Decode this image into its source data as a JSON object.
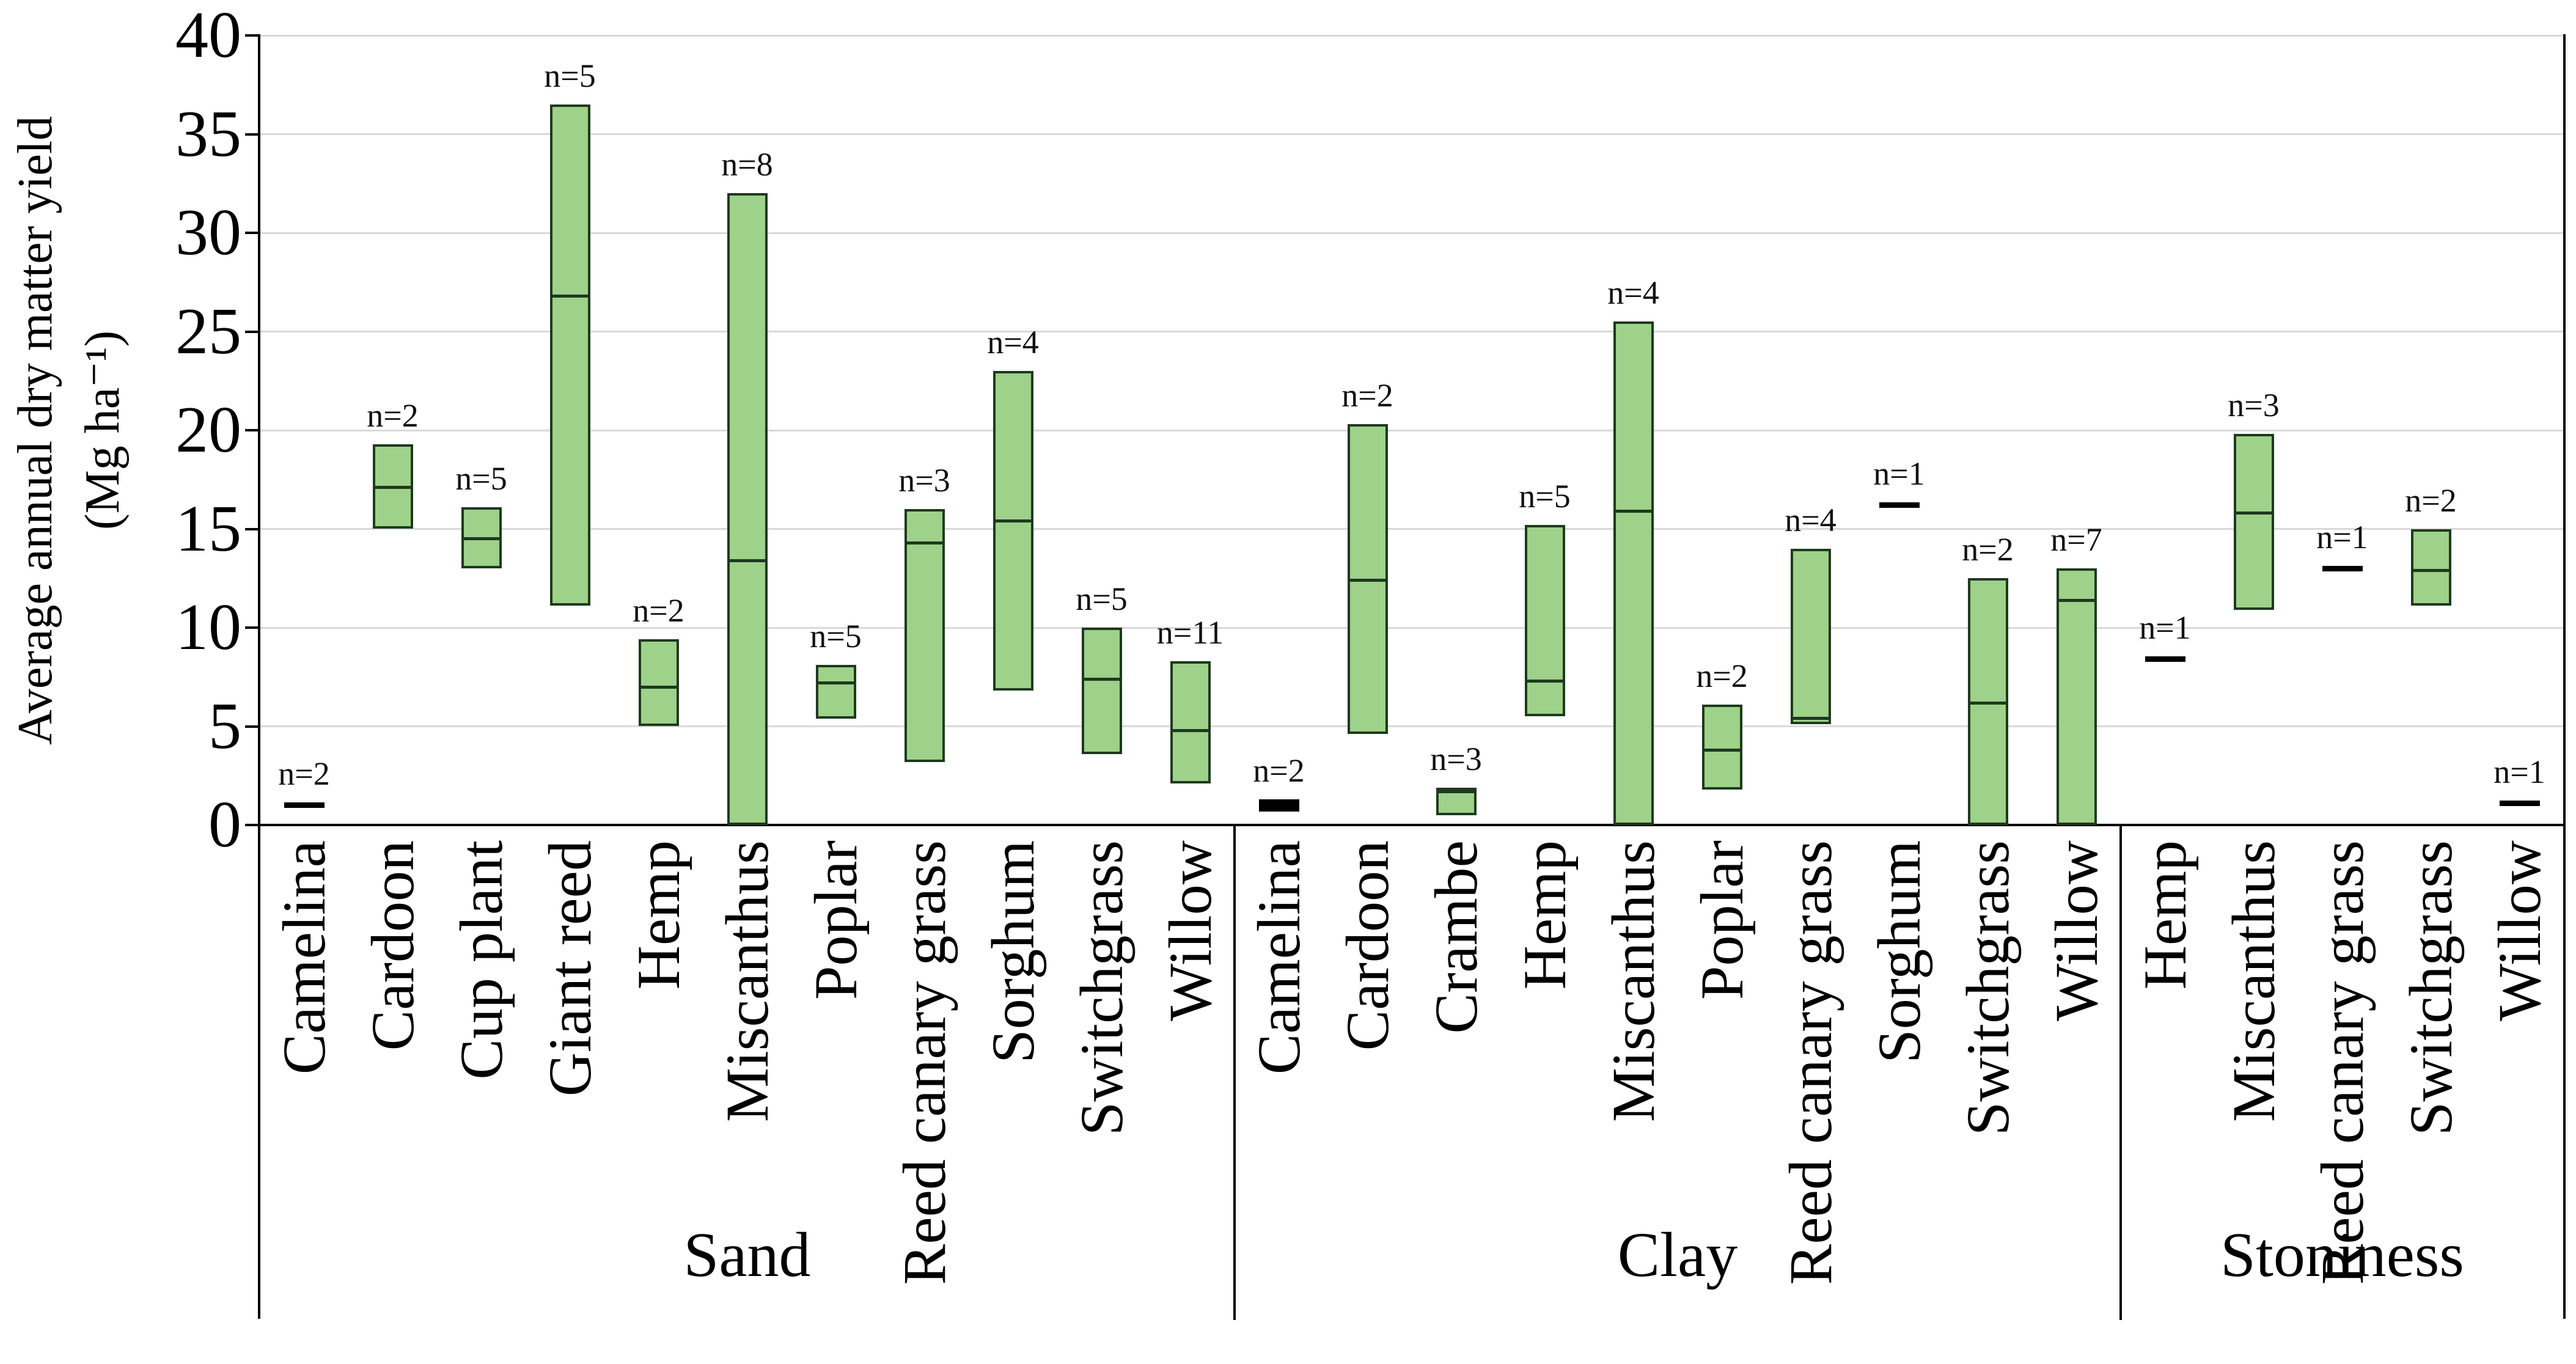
{
  "chart_data": {
    "type": "bar",
    "subtype": "floating-range-bars-with-median",
    "title": "",
    "xlabel": "",
    "ylabel": "Average annual dry matter yield (Mg ha⁻¹)",
    "ylabel_line1": "Average annual dry matter yield",
    "ylabel_line2": "(Mg ha⁻¹)",
    "ylim": [
      0,
      40
    ],
    "yticks": [
      0,
      5,
      10,
      15,
      20,
      25,
      30,
      35,
      40
    ],
    "grid": true,
    "legend": "none",
    "n_label_prefix": "n=",
    "colors": {
      "bar_fill": "#9ed189",
      "bar_border": "#1e3a1e",
      "median_line": "#1e3a1e",
      "dash": "#000000",
      "gridline": "#d9d9d9",
      "axis": "#000000",
      "text": "#000000",
      "background": "#ffffff"
    },
    "groups": [
      {
        "label": "Sand",
        "items": [
          {
            "crop": "Camelina",
            "n": 2,
            "type": "dash",
            "value": 1.0
          },
          {
            "crop": "Cardoon",
            "n": 2,
            "type": "range",
            "min": 15.0,
            "max": 19.3,
            "median": 17.2
          },
          {
            "crop": "Cup plant",
            "n": 5,
            "type": "range",
            "min": 13.0,
            "max": 16.1,
            "median": 14.6
          },
          {
            "crop": "Giant reed",
            "n": 5,
            "type": "range",
            "min": 11.1,
            "max": 36.5,
            "median": 26.9
          },
          {
            "crop": "Hemp",
            "n": 2,
            "type": "range",
            "min": 5.0,
            "max": 9.4,
            "median": 7.1
          },
          {
            "crop": "Miscanthus",
            "n": 8,
            "type": "range",
            "min": 0,
            "max": 32.0,
            "median": 13.5
          },
          {
            "crop": "Poplar",
            "n": 5,
            "type": "range",
            "min": 5.4,
            "max": 8.1,
            "median": 7.3
          },
          {
            "crop": "Reed canary grass",
            "n": 3,
            "type": "range",
            "min": 3.2,
            "max": 16.0,
            "median": 14.4
          },
          {
            "crop": "Sorghum",
            "n": 4,
            "type": "range",
            "min": 6.8,
            "max": 23.0,
            "median": 15.5
          },
          {
            "crop": "Switchgrass",
            "n": 5,
            "type": "range",
            "min": 3.6,
            "max": 10.0,
            "median": 7.5
          },
          {
            "crop": "Willow",
            "n": 11,
            "type": "range",
            "min": 2.1,
            "max": 8.3,
            "median": 4.9
          }
        ]
      },
      {
        "label": "Clay",
        "items": [
          {
            "crop": "Camelina",
            "n": 2,
            "type": "dash",
            "value": 1.0,
            "thick": true
          },
          {
            "crop": "Cardoon",
            "n": 2,
            "type": "range",
            "min": 4.6,
            "max": 20.3,
            "median": 12.5
          },
          {
            "crop": "Crambe",
            "n": 3,
            "type": "range",
            "min": 0.5,
            "max": 1.9,
            "median": 1.8
          },
          {
            "crop": "Hemp",
            "n": 5,
            "type": "range",
            "min": 5.5,
            "max": 15.2,
            "median": 7.4
          },
          {
            "crop": "Miscanthus",
            "n": 4,
            "type": "range",
            "min": 0,
            "max": 25.5,
            "median": 16.0
          },
          {
            "crop": "Poplar",
            "n": 2,
            "type": "range",
            "min": 1.8,
            "max": 6.1,
            "median": 3.9
          },
          {
            "crop": "Reed canary grass",
            "n": 4,
            "type": "range",
            "min": 5.1,
            "max": 14.0,
            "median": 5.5
          },
          {
            "crop": "Sorghum",
            "n": 1,
            "type": "dash",
            "value": 16.2
          },
          {
            "crop": "Switchgrass",
            "n": 2,
            "type": "range",
            "min": 0,
            "max": 12.5,
            "median": 6.3
          },
          {
            "crop": "Willow",
            "n": 7,
            "type": "range",
            "min": 0,
            "max": 13.0,
            "median": 11.5
          }
        ]
      },
      {
        "label": "Stoniness",
        "items": [
          {
            "crop": "Hemp",
            "n": 1,
            "type": "dash",
            "value": 8.4
          },
          {
            "crop": "Miscanthus",
            "n": 3,
            "type": "range",
            "min": 10.9,
            "max": 19.8,
            "median": 15.9
          },
          {
            "crop": "Reed canary grass",
            "n": 1,
            "type": "dash",
            "value": 13.0
          },
          {
            "crop": "Switchgrass",
            "n": 2,
            "type": "range",
            "min": 11.1,
            "max": 15.0,
            "median": 13.0
          },
          {
            "crop": "Willow",
            "n": 1,
            "type": "dash",
            "value": 1.1
          }
        ]
      }
    ]
  }
}
